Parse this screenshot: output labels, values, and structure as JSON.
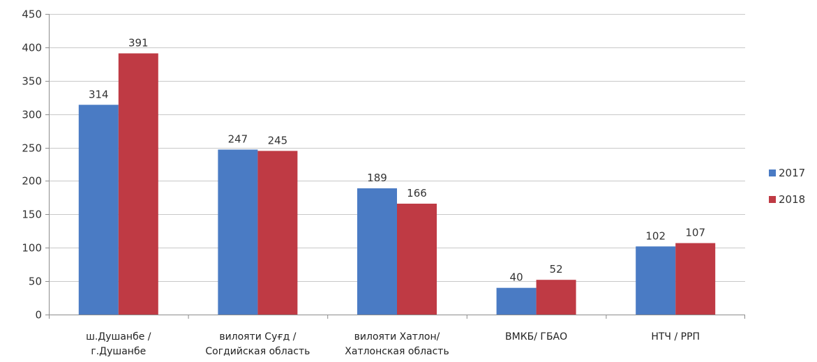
{
  "chart_data": {
    "type": "bar",
    "categories": [
      [
        "ш.Душанбе /",
        "г.Душанбе"
      ],
      [
        "вилояти Суғд /",
        "Согдийская область"
      ],
      [
        "вилояти Хатлон/",
        "Хатлонская область"
      ],
      [
        "ВМКБ/ ГБАО"
      ],
      [
        "НТЧ / РРП"
      ]
    ],
    "series": [
      {
        "name": "2017",
        "color": "#4a7bc4",
        "values": [
          314,
          247,
          189,
          40,
          102
        ]
      },
      {
        "name": "2018",
        "color": "#bf3a44",
        "values": [
          391,
          245,
          166,
          52,
          107
        ]
      }
    ],
    "ylim": [
      0,
      450
    ],
    "yticks": [
      0,
      50,
      100,
      150,
      200,
      250,
      300,
      350,
      400,
      450
    ],
    "grid": true,
    "legend": "right",
    "data_labels": true
  }
}
